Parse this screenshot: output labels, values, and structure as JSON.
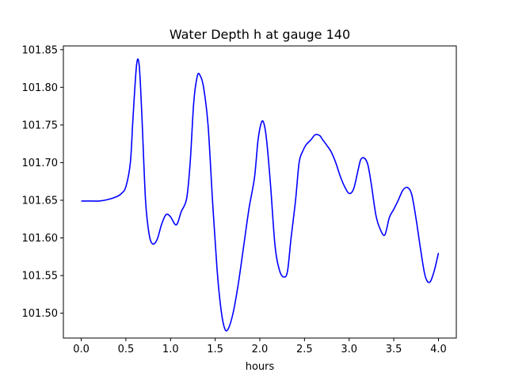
{
  "chart_data": {
    "type": "line",
    "title": "Water Depth h at gauge 140",
    "xlabel": "hours",
    "ylabel": "",
    "xlim": [
      -0.2,
      4.2
    ],
    "ylim": [
      101.467,
      101.855
    ],
    "grid": false,
    "xticks": [
      0.0,
      0.5,
      1.0,
      1.5,
      2.0,
      2.5,
      3.0,
      3.5,
      4.0
    ],
    "xtick_labels": [
      "0.0",
      "0.5",
      "1.0",
      "1.5",
      "2.0",
      "2.5",
      "3.0",
      "3.5",
      "4.0"
    ],
    "yticks": [
      101.5,
      101.55,
      101.6,
      101.65,
      101.7,
      101.75,
      101.8,
      101.85
    ],
    "ytick_labels": [
      "101.50",
      "101.55",
      "101.60",
      "101.65",
      "101.70",
      "101.75",
      "101.80",
      "101.85"
    ],
    "series": [
      {
        "color": "#0000ff",
        "x": [
          0.0,
          0.1,
          0.2,
          0.3,
          0.4,
          0.45,
          0.5,
          0.55,
          0.58,
          0.62,
          0.65,
          0.68,
          0.72,
          0.76,
          0.8,
          0.85,
          0.9,
          0.95,
          1.0,
          1.05,
          1.08,
          1.12,
          1.18,
          1.22,
          1.26,
          1.3,
          1.33,
          1.37,
          1.42,
          1.47,
          1.52,
          1.56,
          1.6,
          1.64,
          1.7,
          1.76,
          1.82,
          1.88,
          1.94,
          1.98,
          2.02,
          2.05,
          2.08,
          2.12,
          2.17,
          2.22,
          2.27,
          2.31,
          2.35,
          2.4,
          2.44,
          2.48,
          2.52,
          2.57,
          2.62,
          2.67,
          2.7,
          2.75,
          2.8,
          2.85,
          2.9,
          2.95,
          3.0,
          3.05,
          3.1,
          3.13,
          3.17,
          3.21,
          3.25,
          3.3,
          3.35,
          3.4,
          3.45,
          3.5,
          3.55,
          3.6,
          3.65,
          3.7,
          3.75,
          3.8,
          3.85,
          3.9,
          3.95,
          4.0
        ],
        "y": [
          101.649,
          101.649,
          101.649,
          101.651,
          101.655,
          101.659,
          101.668,
          101.7,
          101.76,
          101.83,
          101.828,
          101.76,
          101.65,
          101.605,
          101.592,
          101.598,
          101.618,
          101.631,
          101.628,
          101.618,
          101.62,
          101.635,
          101.652,
          101.7,
          101.78,
          101.815,
          101.816,
          101.8,
          101.75,
          101.65,
          101.56,
          101.51,
          101.482,
          101.478,
          101.5,
          101.54,
          101.59,
          101.64,
          101.68,
          101.73,
          101.754,
          101.75,
          101.725,
          101.67,
          101.59,
          101.557,
          101.548,
          101.556,
          101.6,
          101.65,
          101.7,
          101.715,
          101.724,
          101.73,
          101.737,
          101.736,
          101.731,
          101.723,
          101.714,
          101.7,
          101.682,
          101.668,
          101.659,
          101.665,
          101.69,
          101.704,
          101.706,
          101.697,
          101.67,
          101.63,
          101.611,
          101.604,
          101.627,
          101.638,
          101.65,
          101.663,
          101.667,
          101.658,
          101.625,
          101.585,
          101.55,
          101.541,
          101.555,
          101.58
        ]
      }
    ]
  }
}
